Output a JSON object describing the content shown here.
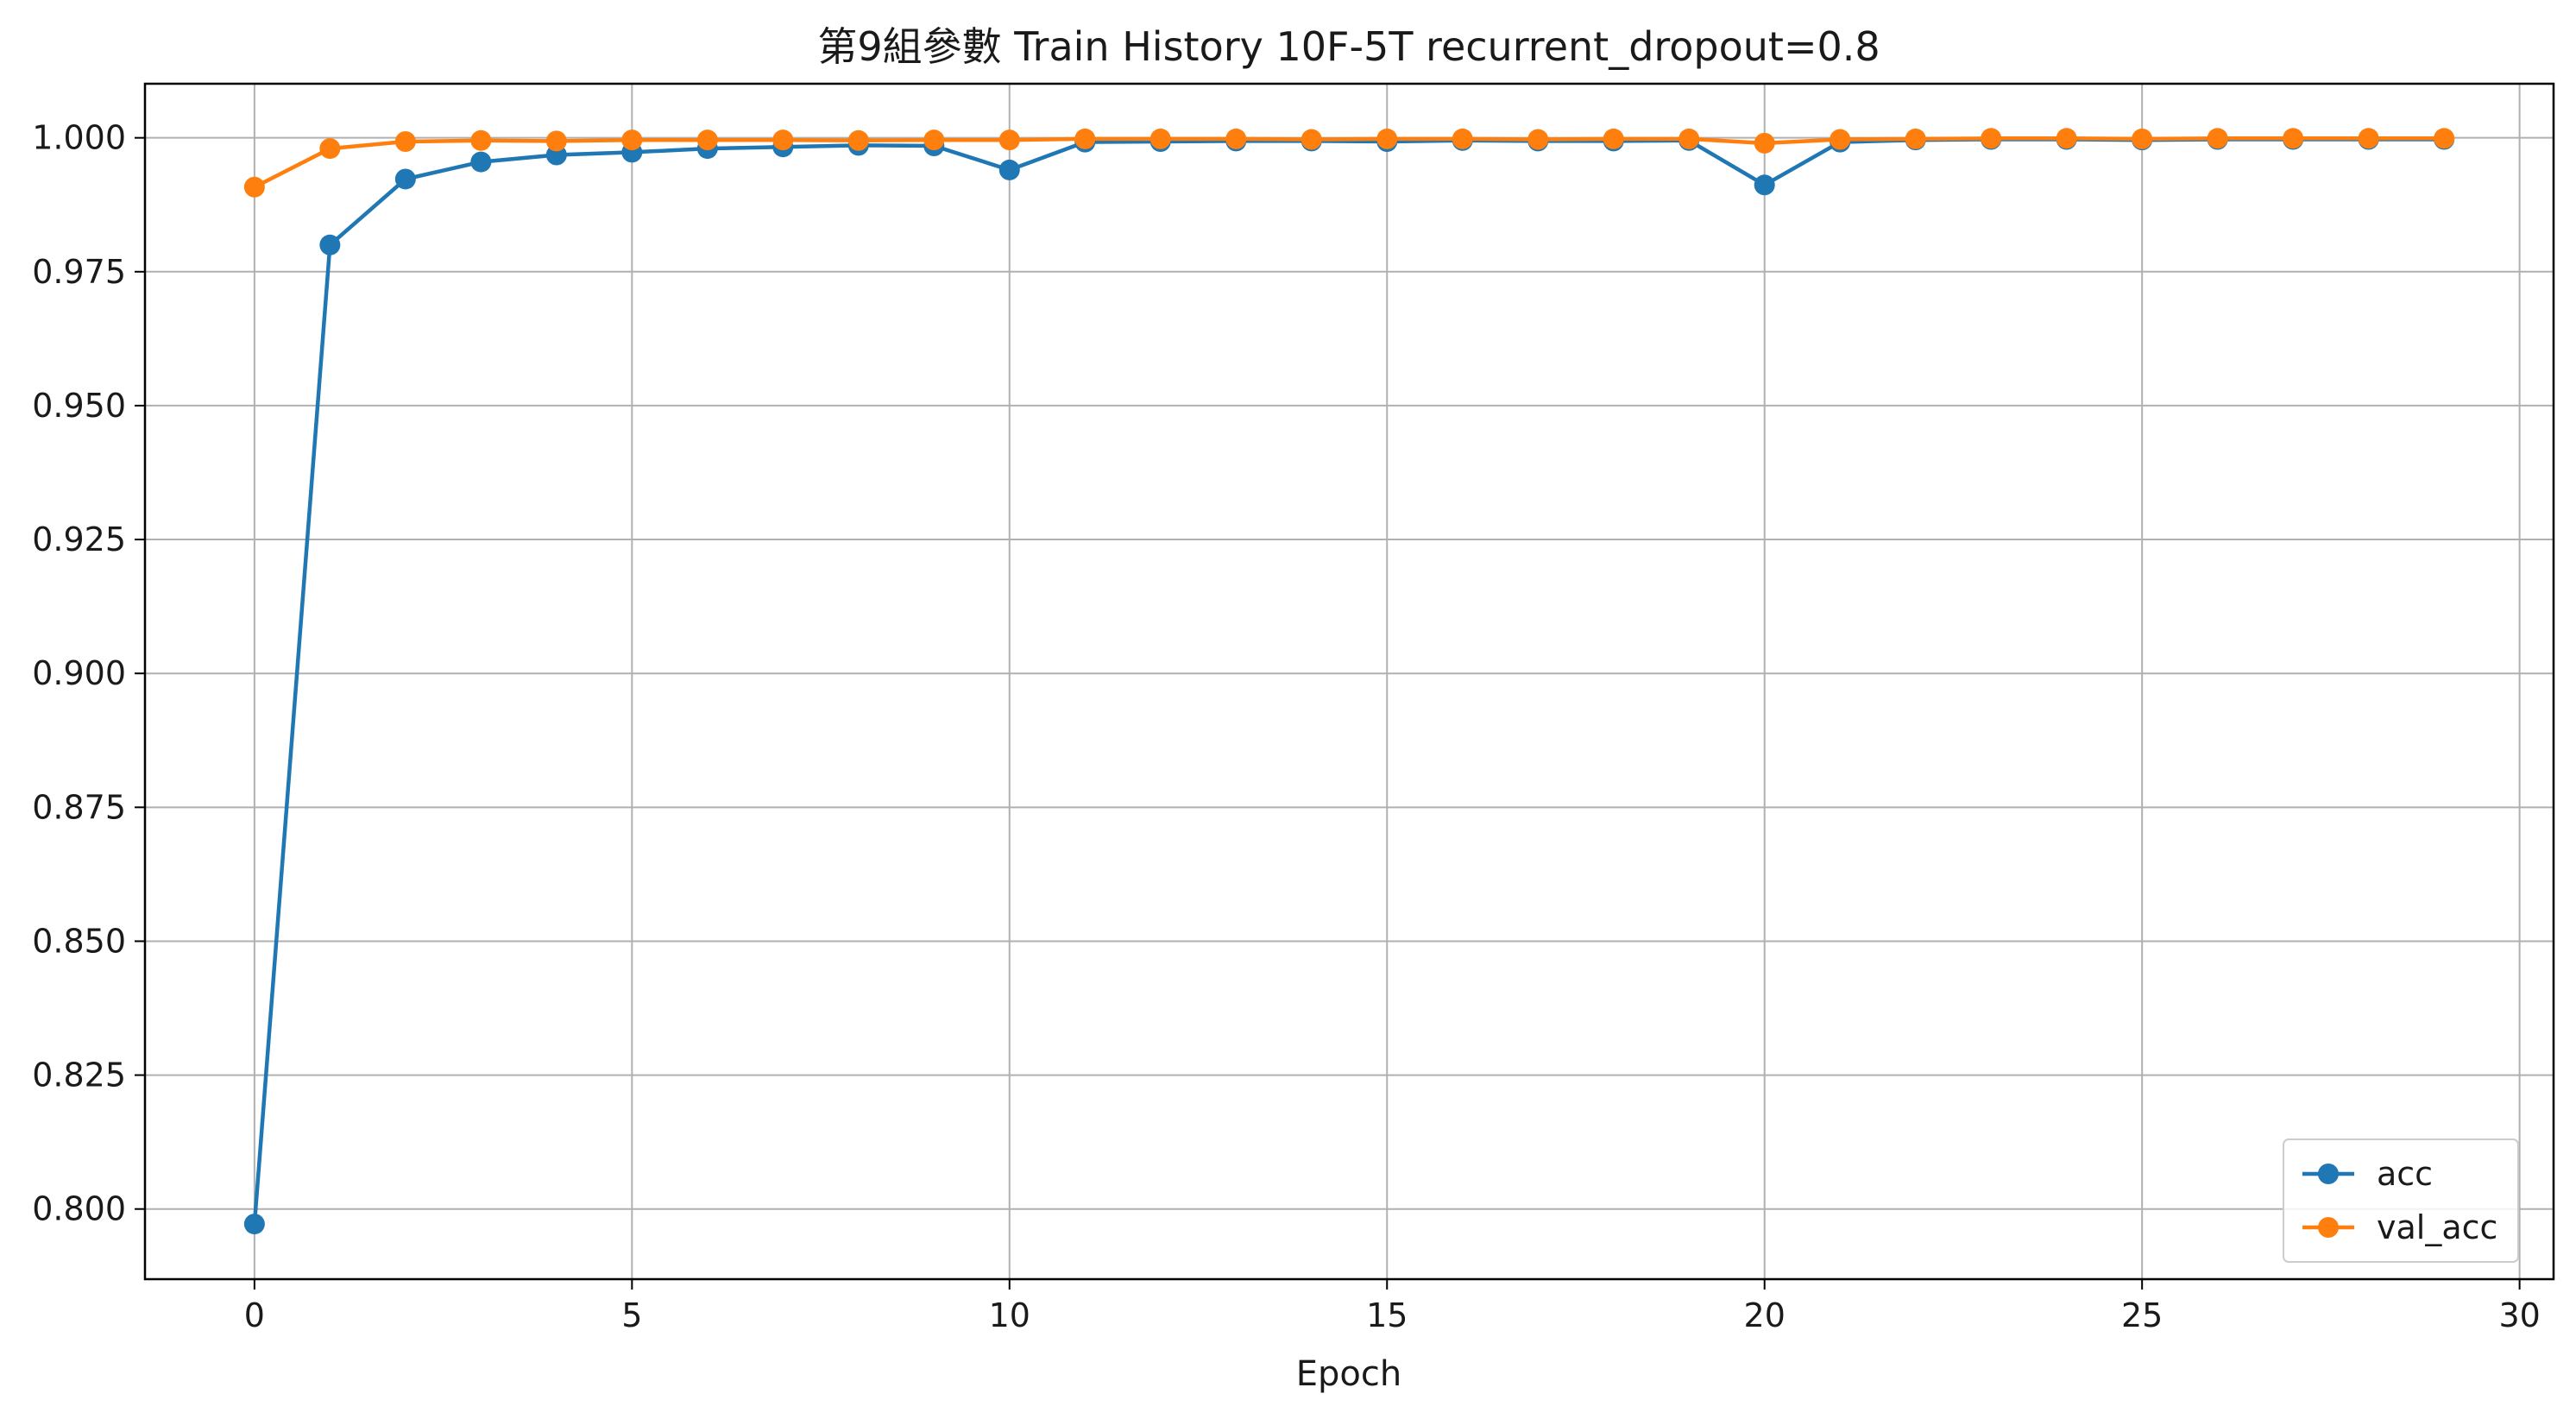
{
  "chart_data": {
    "type": "line",
    "title": "第9組參數 Train History 10F-5T recurrent_dropout=0.8",
    "xlabel": "Epoch",
    "ylabel": "",
    "xlim": [
      -1.45,
      30.45
    ],
    "ylim": [
      0.7869,
      1.0101
    ],
    "xticks": [
      0,
      5,
      10,
      15,
      20,
      25,
      30
    ],
    "xtick_labels": [
      "0",
      "5",
      "10",
      "15",
      "20",
      "25",
      "30"
    ],
    "yticks": [
      0.8,
      0.825,
      0.85,
      0.875,
      0.9,
      0.925,
      0.95,
      0.975,
      1.0
    ],
    "ytick_labels": [
      "0.800",
      "0.825",
      "0.850",
      "0.875",
      "0.900",
      "0.925",
      "0.950",
      "0.975",
      "1.000"
    ],
    "grid": true,
    "legend_position": "lower-right",
    "x": [
      0,
      1,
      2,
      3,
      4,
      5,
      6,
      7,
      8,
      9,
      10,
      11,
      12,
      13,
      14,
      15,
      16,
      17,
      18,
      19,
      20,
      21,
      22,
      23,
      24,
      25,
      26,
      27,
      28,
      29
    ],
    "series": [
      {
        "name": "acc",
        "color": "#1f77b4",
        "marker": "circle",
        "values": [
          0.7972,
          0.98,
          0.9923,
          0.9955,
          0.9968,
          0.9973,
          0.998,
          0.9983,
          0.9986,
          0.9985,
          0.994,
          0.9992,
          0.9993,
          0.9994,
          0.9994,
          0.9993,
          0.9995,
          0.9994,
          0.9994,
          0.9995,
          0.9912,
          0.9992,
          0.9996,
          0.9997,
          0.9997,
          0.9996,
          0.9997,
          0.9997,
          0.9997,
          0.9997
        ]
      },
      {
        "name": "val_acc",
        "color": "#ff7f0e",
        "marker": "circle",
        "values": [
          0.9908,
          0.998,
          0.9993,
          0.9995,
          0.9994,
          0.9996,
          0.9996,
          0.9996,
          0.9995,
          0.9996,
          0.9996,
          0.9998,
          0.9998,
          0.9998,
          0.9997,
          0.9998,
          0.9998,
          0.9997,
          0.9998,
          0.9998,
          0.999,
          0.9997,
          0.9998,
          0.9999,
          0.9999,
          0.9998,
          0.9999,
          0.9999,
          0.9999,
          0.9999
        ]
      }
    ]
  }
}
